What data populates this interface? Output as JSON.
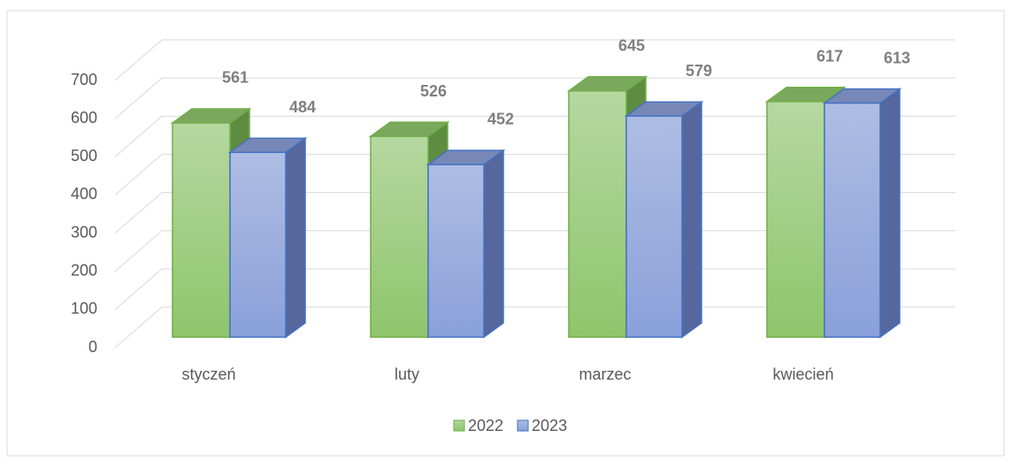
{
  "chart_data": {
    "type": "bar3d",
    "categories": [
      "styczeń",
      "luty",
      "marzec",
      "kwiecień"
    ],
    "series": [
      {
        "name": "2022",
        "color": "#70ad47",
        "values": [
          561,
          526,
          645,
          617
        ]
      },
      {
        "name": "2023",
        "color": "#4472c4",
        "values": [
          484,
          452,
          579,
          613
        ]
      }
    ],
    "ylim": [
      0,
      700
    ],
    "yticks": [
      0,
      100,
      200,
      300,
      400,
      500,
      600,
      700
    ],
    "grid": true,
    "legend": "bottom"
  }
}
